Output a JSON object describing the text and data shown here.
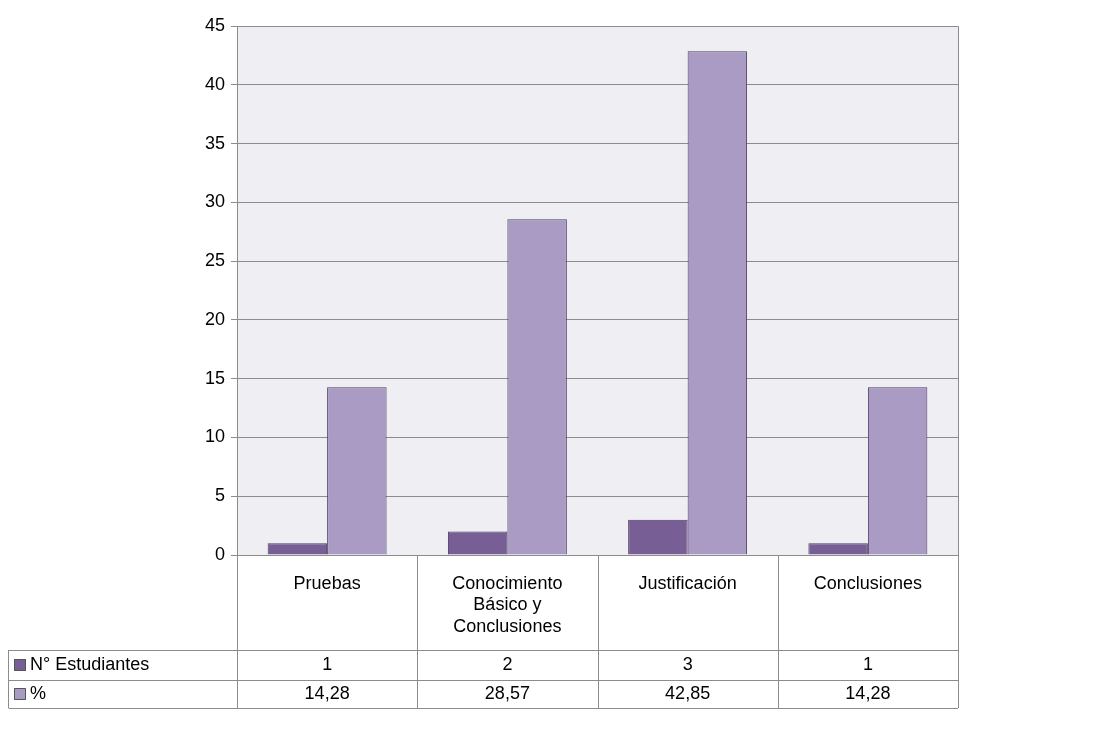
{
  "chart_data": {
    "type": "bar",
    "categories": [
      "Pruebas",
      "Conocimiento Básico y Conclusiones",
      "Justificación",
      "Conclusiones"
    ],
    "series": [
      {
        "name": "N° Estudiantes",
        "color": "#775f96",
        "values": [
          1,
          2,
          3,
          1
        ],
        "value_labels": [
          "1",
          "2",
          "3",
          "1"
        ]
      },
      {
        "name": "%",
        "color": "#a99bc3",
        "values": [
          14.28,
          28.57,
          42.85,
          14.28
        ],
        "value_labels": [
          "14,28",
          "28,57",
          "42,85",
          "14,28"
        ]
      }
    ],
    "ylim": [
      0,
      45
    ],
    "yticks": [
      0,
      5,
      10,
      15,
      20,
      25,
      30,
      35,
      40,
      45
    ],
    "grid": "y",
    "legend": "bottom"
  }
}
